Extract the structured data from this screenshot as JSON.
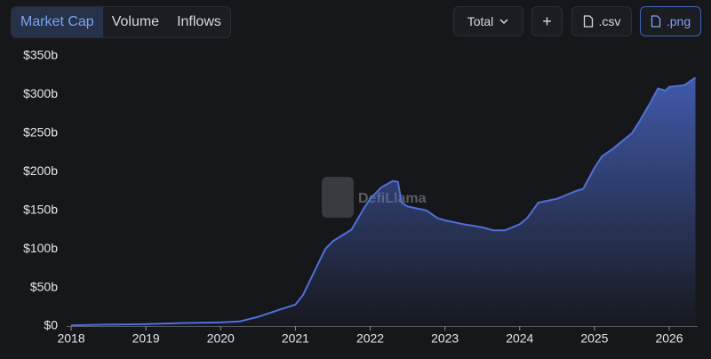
{
  "tabs": [
    "Market Cap",
    "Volume",
    "Inflows"
  ],
  "controls": {
    "dropdown": "Total",
    "add": "+",
    "csv": ".csv",
    "png": ".png"
  },
  "watermark": "DefiLlama",
  "chart_data": {
    "type": "area",
    "x": [
      2018.0,
      2018.5,
      2019.0,
      2019.5,
      2020.0,
      2020.25,
      2020.5,
      2020.75,
      2021.0,
      2021.1,
      2021.25,
      2021.4,
      2021.5,
      2021.75,
      2021.9,
      2022.0,
      2022.15,
      2022.3,
      2022.37,
      2022.42,
      2022.5,
      2022.75,
      2022.9,
      2023.0,
      2023.25,
      2023.5,
      2023.65,
      2023.8,
      2024.0,
      2024.1,
      2024.25,
      2024.5,
      2024.75,
      2024.85,
      2025.0,
      2025.1,
      2025.25,
      2025.5,
      2025.6,
      2025.75,
      2025.85,
      2025.95,
      2026.0,
      2026.2,
      2026.35
    ],
    "values": [
      1,
      2,
      2.5,
      4,
      5,
      6,
      12,
      20,
      28,
      40,
      70,
      100,
      110,
      125,
      150,
      165,
      180,
      188,
      187,
      160,
      155,
      150,
      140,
      137,
      132,
      128,
      124,
      124,
      132,
      140,
      160,
      165,
      175,
      178,
      205,
      220,
      230,
      250,
      265,
      290,
      308,
      305,
      310,
      312,
      322
    ],
    "color": "#4f70d9",
    "xlim": [
      2017.94,
      2026.38
    ],
    "xticks": [
      2018,
      2019,
      2020,
      2021,
      2022,
      2023,
      2024,
      2025,
      2026
    ],
    "ylim": [
      0,
      350
    ],
    "yticks": [
      {
        "value": 0,
        "label": "$0"
      },
      {
        "value": 50,
        "label": "$50b"
      },
      {
        "value": 100,
        "label": "$100b"
      },
      {
        "value": 150,
        "label": "$150b"
      },
      {
        "value": 200,
        "label": "$200b"
      },
      {
        "value": 250,
        "label": "$250b"
      },
      {
        "value": 300,
        "label": "$300b"
      },
      {
        "value": 350,
        "label": "$350b"
      }
    ]
  }
}
